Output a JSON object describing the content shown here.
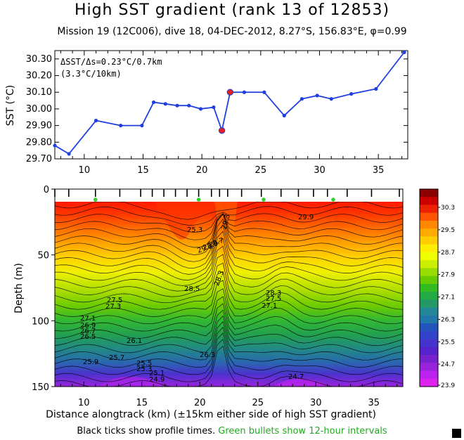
{
  "title": "High SST gradient (rank 13 of 12853)",
  "subtitle": "Mission 19 (12C006),  dive 18,  04-DEC-2012,  8.27°S, 156.83°E,  φ=0.99",
  "footer": {
    "black": "Black ticks show profile times.",
    "green": "Green bullets show 12-hour intervals"
  },
  "chart_data": [
    {
      "type": "line",
      "ylabel": "SST (°C)",
      "ylim": [
        29.7,
        30.35
      ],
      "xlim": [
        7.5,
        37.5
      ],
      "yticks": [
        "29.70",
        "29.80",
        "29.90",
        "30.00",
        "30.10",
        "30.20",
        "30.30"
      ],
      "xticks": [
        "10",
        "15",
        "20",
        "25",
        "30",
        "35"
      ],
      "annotation_line1": "ΔSST/Δs=0.23°C/0.7km",
      "annotation_line2": "(3.3°C/10km)",
      "line_color": "#1f3fe0",
      "highlight_color": "#e02020",
      "x": [
        7.5,
        8.7,
        11.0,
        13.1,
        14.9,
        15.9,
        16.9,
        17.9,
        18.9,
        19.9,
        21.0,
        21.7,
        22.4,
        23.6,
        25.3,
        27.0,
        28.5,
        29.8,
        31.0,
        32.7,
        34.8,
        37.2
      ],
      "y": [
        29.78,
        29.73,
        29.93,
        29.9,
        29.9,
        30.04,
        30.03,
        30.02,
        30.02,
        30.0,
        30.01,
        29.87,
        30.1,
        30.1,
        30.1,
        29.96,
        30.06,
        30.08,
        30.06,
        30.09,
        30.12,
        30.34
      ],
      "highlight_x": [
        21.7,
        22.4
      ],
      "highlight_y": [
        29.87,
        30.1
      ]
    },
    {
      "type": "heatmap",
      "xlabel": "Distance alongtrack (km) (±15km either side of high SST gradient)",
      "ylabel": "Depth (m)",
      "xlim": [
        7.5,
        37.5
      ],
      "ylim": [
        150,
        0
      ],
      "xticks": [
        "10",
        "15",
        "20",
        "25",
        "30",
        "35"
      ],
      "yticks": [
        "0",
        "50",
        "100",
        "150"
      ],
      "colorbar_labels": [
        "30.3",
        "29.5",
        "28.7",
        "27.9",
        "27.1",
        "26.3",
        "25.5",
        "24.7",
        "23.9"
      ],
      "colorbar_colors": [
        "#8b0000",
        "#cc0000",
        "#ee2200",
        "#ff5500",
        "#ff8800",
        "#ffaa00",
        "#ffcc00",
        "#ffee00",
        "#eeff00",
        "#ccee00",
        "#99dd00",
        "#66cc00",
        "#33bb22",
        "#22aa44",
        "#229966",
        "#228899",
        "#2277aa",
        "#2255bb",
        "#3344cc",
        "#4433cc",
        "#5522cc",
        "#7722cc",
        "#9922dd",
        "#bb22ee",
        "#dd22ee"
      ],
      "contour_labels": [
        "29.9",
        "29.3",
        "28.9",
        "28.7",
        "28.5",
        "28.3",
        "27.5",
        "27.3",
        "27.1",
        "26.9",
        "26.7",
        "26.5",
        "26.3",
        "26.1",
        "25.9",
        "25.7",
        "25.5",
        "25.3",
        "25.1",
        "24.9",
        "24.7"
      ],
      "profile_x": [
        7.5,
        8.7,
        11.0,
        13.1,
        14.9,
        15.9,
        16.9,
        17.9,
        18.9,
        19.9,
        21.0,
        21.7,
        22.4,
        23.6,
        25.3,
        27.0,
        28.5,
        29.8,
        31.0,
        32.7,
        34.8,
        37.2
      ],
      "green_bullet_x": [
        11.0,
        19.9,
        25.5,
        31.5
      ]
    }
  ]
}
